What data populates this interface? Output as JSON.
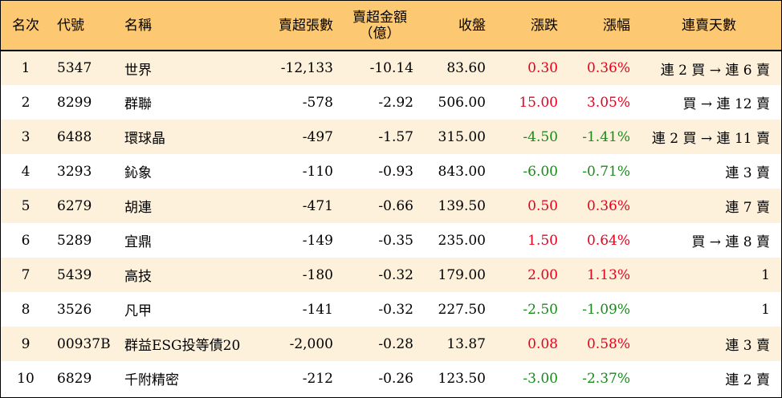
{
  "headers": {
    "rank": "名次",
    "code": "代號",
    "name": "名稱",
    "net_sell_lots": "賣超張數",
    "net_sell_amount_line1": "賣超金額",
    "net_sell_amount_line2": "（億）",
    "close": "收盤",
    "change": "漲跌",
    "change_pct": "漲幅",
    "streak": "連賣天數"
  },
  "colors": {
    "header_bg": "#fdc872",
    "stripe_bg": "#fdf1dc",
    "up": "#e8001c",
    "down": "#1a8a1a"
  },
  "rows": [
    {
      "rank": "1",
      "code": "5347",
      "name": "世界",
      "lots": "-12,133",
      "amount": "-10.14",
      "close": "83.60",
      "change": "0.30",
      "pct": "0.36%",
      "dir": "up",
      "streak": "連 2 買 → 連 6 賣"
    },
    {
      "rank": "2",
      "code": "8299",
      "name": "群聯",
      "lots": "-578",
      "amount": "-2.92",
      "close": "506.00",
      "change": "15.00",
      "pct": "3.05%",
      "dir": "up",
      "streak": "買 → 連 12 賣"
    },
    {
      "rank": "3",
      "code": "6488",
      "name": "環球晶",
      "lots": "-497",
      "amount": "-1.57",
      "close": "315.00",
      "change": "-4.50",
      "pct": "-1.41%",
      "dir": "down",
      "streak": "連 2 買 → 連 11 賣"
    },
    {
      "rank": "4",
      "code": "3293",
      "name": "鈊象",
      "lots": "-110",
      "amount": "-0.93",
      "close": "843.00",
      "change": "-6.00",
      "pct": "-0.71%",
      "dir": "down",
      "streak": "連 3 賣"
    },
    {
      "rank": "5",
      "code": "6279",
      "name": "胡連",
      "lots": "-471",
      "amount": "-0.66",
      "close": "139.50",
      "change": "0.50",
      "pct": "0.36%",
      "dir": "up",
      "streak": "連 7 賣"
    },
    {
      "rank": "6",
      "code": "5289",
      "name": "宜鼎",
      "lots": "-149",
      "amount": "-0.35",
      "close": "235.00",
      "change": "1.50",
      "pct": "0.64%",
      "dir": "up",
      "streak": "買 → 連 8 賣"
    },
    {
      "rank": "7",
      "code": "5439",
      "name": "高技",
      "lots": "-180",
      "amount": "-0.32",
      "close": "179.00",
      "change": "2.00",
      "pct": "1.13%",
      "dir": "up",
      "streak": "1"
    },
    {
      "rank": "8",
      "code": "3526",
      "name": "凡甲",
      "lots": "-141",
      "amount": "-0.32",
      "close": "227.50",
      "change": "-2.50",
      "pct": "-1.09%",
      "dir": "down",
      "streak": "1"
    },
    {
      "rank": "9",
      "code": "00937B",
      "name": "群益ESG投等債20",
      "lots": "-2,000",
      "amount": "-0.28",
      "close": "13.87",
      "change": "0.08",
      "pct": "0.58%",
      "dir": "up",
      "streak": "連 3 賣"
    },
    {
      "rank": "10",
      "code": "6829",
      "name": "千附精密",
      "lots": "-212",
      "amount": "-0.26",
      "close": "123.50",
      "change": "-3.00",
      "pct": "-2.37%",
      "dir": "down",
      "streak": "連 2 賣"
    }
  ]
}
